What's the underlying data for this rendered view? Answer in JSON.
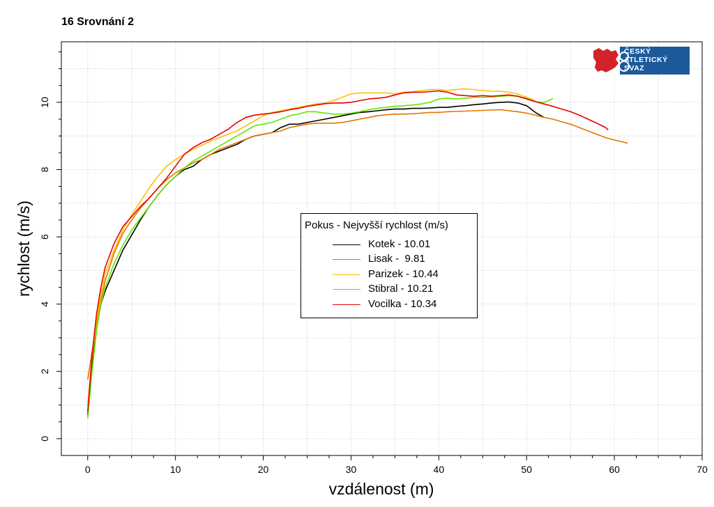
{
  "chart_data": {
    "type": "line",
    "title": "16 Srovnání 2",
    "xlabel": "vzdálenost (m)",
    "ylabel": "rychlost (m/s)",
    "xlim": [
      -3,
      70
    ],
    "ylim": [
      -0.5,
      11.8
    ],
    "xticks": [
      0,
      10,
      20,
      30,
      40,
      50,
      60,
      70
    ],
    "yticks": [
      0,
      2,
      4,
      6,
      8,
      10
    ],
    "grid": true,
    "legend_title": "Pokus - Nejvyšší rychlost (m/s)",
    "legend_position": "center",
    "series": [
      {
        "name": "Kotek - 10.01",
        "color": "#000000",
        "points": [
          [
            0,
            0.7
          ],
          [
            0.5,
            2.2
          ],
          [
            1,
            3.4
          ],
          [
            1.5,
            4.0
          ],
          [
            2,
            4.4
          ],
          [
            3,
            5.0
          ],
          [
            4,
            5.6
          ],
          [
            5,
            6.05
          ],
          [
            6,
            6.5
          ],
          [
            7,
            6.9
          ],
          [
            8,
            7.25
          ],
          [
            9,
            7.55
          ],
          [
            10,
            7.8
          ],
          [
            11,
            8.0
          ],
          [
            12,
            8.1
          ],
          [
            13,
            8.3
          ],
          [
            14,
            8.45
          ],
          [
            15,
            8.55
          ],
          [
            16,
            8.65
          ],
          [
            17,
            8.75
          ],
          [
            18,
            8.9
          ],
          [
            19,
            9.0
          ],
          [
            20,
            9.05
          ],
          [
            21,
            9.1
          ],
          [
            22,
            9.25
          ],
          [
            23,
            9.35
          ],
          [
            24,
            9.35
          ],
          [
            25,
            9.4
          ],
          [
            26,
            9.45
          ],
          [
            27,
            9.5
          ],
          [
            28,
            9.55
          ],
          [
            29,
            9.6
          ],
          [
            30,
            9.65
          ],
          [
            31,
            9.7
          ],
          [
            32,
            9.72
          ],
          [
            33,
            9.75
          ],
          [
            34,
            9.78
          ],
          [
            35,
            9.8
          ],
          [
            36,
            9.8
          ],
          [
            37,
            9.82
          ],
          [
            38,
            9.82
          ],
          [
            39,
            9.83
          ],
          [
            40,
            9.85
          ],
          [
            41,
            9.85
          ],
          [
            42,
            9.88
          ],
          [
            43,
            9.9
          ],
          [
            44,
            9.93
          ],
          [
            45,
            9.95
          ],
          [
            46,
            9.98
          ],
          [
            47,
            10.0
          ],
          [
            48,
            10.01
          ],
          [
            49,
            9.98
          ],
          [
            50,
            9.9
          ],
          [
            51,
            9.7
          ],
          [
            52,
            9.55
          ]
        ]
      },
      {
        "name": "Lisak -  9.81",
        "color": "#E67300",
        "points": [
          [
            0,
            1.75
          ],
          [
            0.5,
            2.6
          ],
          [
            1,
            3.4
          ],
          [
            1.5,
            4.1
          ],
          [
            2,
            4.7
          ],
          [
            3,
            5.5
          ],
          [
            4,
            6.1
          ],
          [
            5,
            6.5
          ],
          [
            6,
            6.85
          ],
          [
            7,
            7.15
          ],
          [
            8,
            7.45
          ],
          [
            9,
            7.7
          ],
          [
            10,
            7.9
          ],
          [
            11,
            8.05
          ],
          [
            12,
            8.2
          ],
          [
            13,
            8.3
          ],
          [
            14,
            8.45
          ],
          [
            15,
            8.6
          ],
          [
            16,
            8.7
          ],
          [
            17,
            8.8
          ],
          [
            18,
            8.9
          ],
          [
            19,
            9.0
          ],
          [
            20,
            9.05
          ],
          [
            21,
            9.1
          ],
          [
            22,
            9.15
          ],
          [
            23,
            9.25
          ],
          [
            24,
            9.3
          ],
          [
            25,
            9.35
          ],
          [
            26,
            9.38
          ],
          [
            27,
            9.38
          ],
          [
            28,
            9.38
          ],
          [
            29,
            9.4
          ],
          [
            30,
            9.45
          ],
          [
            31,
            9.5
          ],
          [
            32,
            9.55
          ],
          [
            33,
            9.6
          ],
          [
            34,
            9.63
          ],
          [
            35,
            9.65
          ],
          [
            36,
            9.65
          ],
          [
            37,
            9.66
          ],
          [
            38,
            9.68
          ],
          [
            39,
            9.7
          ],
          [
            40,
            9.7
          ],
          [
            41,
            9.72
          ],
          [
            42,
            9.73
          ],
          [
            43,
            9.74
          ],
          [
            44,
            9.75
          ],
          [
            45,
            9.76
          ],
          [
            46,
            9.77
          ],
          [
            47,
            9.78
          ],
          [
            48,
            9.75
          ],
          [
            49,
            9.72
          ],
          [
            50,
            9.68
          ],
          [
            51,
            9.62
          ],
          [
            52,
            9.55
          ],
          [
            53,
            9.5
          ],
          [
            54,
            9.42
          ],
          [
            55,
            9.35
          ],
          [
            56,
            9.25
          ],
          [
            57,
            9.15
          ],
          [
            58,
            9.05
          ],
          [
            59,
            8.95
          ],
          [
            60,
            8.88
          ],
          [
            61,
            8.82
          ],
          [
            61.5,
            8.78
          ]
        ]
      },
      {
        "name": "Parizek - 10.44",
        "color": "#FFC000",
        "points": [
          [
            0,
            1.0
          ],
          [
            0.5,
            2.4
          ],
          [
            1,
            3.5
          ],
          [
            1.5,
            4.3
          ],
          [
            2,
            4.9
          ],
          [
            3,
            5.6
          ],
          [
            4,
            6.2
          ],
          [
            5,
            6.65
          ],
          [
            6,
            7.05
          ],
          [
            7,
            7.45
          ],
          [
            8,
            7.8
          ],
          [
            9,
            8.1
          ],
          [
            10,
            8.3
          ],
          [
            11,
            8.45
          ],
          [
            12,
            8.6
          ],
          [
            13,
            8.72
          ],
          [
            14,
            8.85
          ],
          [
            15,
            8.95
          ],
          [
            16,
            9.05
          ],
          [
            17,
            9.15
          ],
          [
            18,
            9.3
          ],
          [
            19,
            9.45
          ],
          [
            20,
            9.6
          ],
          [
            21,
            9.7
          ],
          [
            22,
            9.75
          ],
          [
            23,
            9.8
          ],
          [
            24,
            9.85
          ],
          [
            25,
            9.9
          ],
          [
            26,
            9.95
          ],
          [
            27,
            9.98
          ],
          [
            28,
            10.05
          ],
          [
            29,
            10.15
          ],
          [
            30,
            10.25
          ],
          [
            31,
            10.28
          ],
          [
            32,
            10.28
          ],
          [
            33,
            10.28
          ],
          [
            34,
            10.28
          ],
          [
            35,
            10.25
          ],
          [
            36,
            10.3
          ],
          [
            37,
            10.32
          ],
          [
            38,
            10.35
          ],
          [
            39,
            10.38
          ],
          [
            40,
            10.38
          ],
          [
            41,
            10.35
          ],
          [
            42,
            10.38
          ],
          [
            43,
            10.4
          ],
          [
            44,
            10.38
          ],
          [
            45,
            10.35
          ],
          [
            46,
            10.33
          ],
          [
            47,
            10.33
          ],
          [
            48,
            10.3
          ],
          [
            49,
            10.25
          ],
          [
            50,
            10.15
          ],
          [
            51,
            10.05
          ]
        ]
      },
      {
        "name": "Stibral - 10.21",
        "color": "#66E600",
        "points": [
          [
            0,
            0.6
          ],
          [
            0.5,
            2.0
          ],
          [
            1,
            3.2
          ],
          [
            1.5,
            4.0
          ],
          [
            2,
            4.5
          ],
          [
            3,
            5.2
          ],
          [
            4,
            5.75
          ],
          [
            5,
            6.2
          ],
          [
            6,
            6.55
          ],
          [
            7,
            6.9
          ],
          [
            8,
            7.25
          ],
          [
            9,
            7.55
          ],
          [
            10,
            7.8
          ],
          [
            11,
            8.05
          ],
          [
            12,
            8.25
          ],
          [
            13,
            8.4
          ],
          [
            14,
            8.55
          ],
          [
            15,
            8.7
          ],
          [
            16,
            8.85
          ],
          [
            17,
            9.0
          ],
          [
            18,
            9.15
          ],
          [
            19,
            9.3
          ],
          [
            20,
            9.35
          ],
          [
            21,
            9.4
          ],
          [
            22,
            9.5
          ],
          [
            23,
            9.6
          ],
          [
            24,
            9.65
          ],
          [
            25,
            9.72
          ],
          [
            26,
            9.72
          ],
          [
            27,
            9.68
          ],
          [
            28,
            9.65
          ],
          [
            29,
            9.65
          ],
          [
            30,
            9.68
          ],
          [
            31,
            9.72
          ],
          [
            32,
            9.78
          ],
          [
            33,
            9.82
          ],
          [
            34,
            9.85
          ],
          [
            35,
            9.88
          ],
          [
            36,
            9.9
          ],
          [
            37,
            9.92
          ],
          [
            38,
            9.95
          ],
          [
            39,
            10.0
          ],
          [
            40,
            10.1
          ],
          [
            41,
            10.12
          ],
          [
            42,
            10.1
          ],
          [
            43,
            10.12
          ],
          [
            44,
            10.15
          ],
          [
            45,
            10.15
          ],
          [
            46,
            10.16
          ],
          [
            47,
            10.18
          ],
          [
            48,
            10.2
          ],
          [
            49,
            10.18
          ],
          [
            50,
            10.12
          ],
          [
            51,
            10.02
          ],
          [
            52,
            10.0
          ],
          [
            52.5,
            10.05
          ],
          [
            53,
            10.12
          ]
        ]
      },
      {
        "name": "Vocilka - 10.34",
        "color": "#E60000",
        "points": [
          [
            0,
            0.8
          ],
          [
            0.5,
            2.5
          ],
          [
            1,
            3.7
          ],
          [
            1.5,
            4.5
          ],
          [
            2,
            5.1
          ],
          [
            3,
            5.8
          ],
          [
            4,
            6.3
          ],
          [
            5,
            6.6
          ],
          [
            6,
            6.9
          ],
          [
            7,
            7.15
          ],
          [
            8,
            7.45
          ],
          [
            9,
            7.75
          ],
          [
            10,
            8.1
          ],
          [
            11,
            8.45
          ],
          [
            12,
            8.65
          ],
          [
            13,
            8.8
          ],
          [
            14,
            8.9
          ],
          [
            15,
            9.05
          ],
          [
            16,
            9.2
          ],
          [
            17,
            9.4
          ],
          [
            18,
            9.55
          ],
          [
            19,
            9.62
          ],
          [
            20,
            9.65
          ],
          [
            21,
            9.68
          ],
          [
            22,
            9.72
          ],
          [
            23,
            9.78
          ],
          [
            24,
            9.82
          ],
          [
            25,
            9.88
          ],
          [
            26,
            9.92
          ],
          [
            27,
            9.96
          ],
          [
            28,
            9.98
          ],
          [
            29,
            9.98
          ],
          [
            30,
            10.0
          ],
          [
            31,
            10.05
          ],
          [
            32,
            10.1
          ],
          [
            33,
            10.12
          ],
          [
            34,
            10.15
          ],
          [
            35,
            10.22
          ],
          [
            36,
            10.28
          ],
          [
            37,
            10.3
          ],
          [
            38,
            10.3
          ],
          [
            39,
            10.32
          ],
          [
            40,
            10.34
          ],
          [
            41,
            10.3
          ],
          [
            42,
            10.22
          ],
          [
            43,
            10.2
          ],
          [
            44,
            10.18
          ],
          [
            45,
            10.2
          ],
          [
            46,
            10.18
          ],
          [
            47,
            10.2
          ],
          [
            48,
            10.22
          ],
          [
            49,
            10.18
          ],
          [
            50,
            10.1
          ],
          [
            51,
            10.02
          ],
          [
            52,
            9.95
          ],
          [
            53,
            9.88
          ],
          [
            54,
            9.8
          ],
          [
            55,
            9.72
          ],
          [
            56,
            9.62
          ],
          [
            57,
            9.5
          ],
          [
            58,
            9.38
          ],
          [
            59,
            9.25
          ],
          [
            59.3,
            9.18
          ]
        ]
      }
    ]
  },
  "logo": {
    "line1": "ČESKÝ",
    "line2": "ATLETICKÝ",
    "line3": "SVAZ",
    "bg_color": "#1C5A9C",
    "red_color": "#D2232A"
  }
}
